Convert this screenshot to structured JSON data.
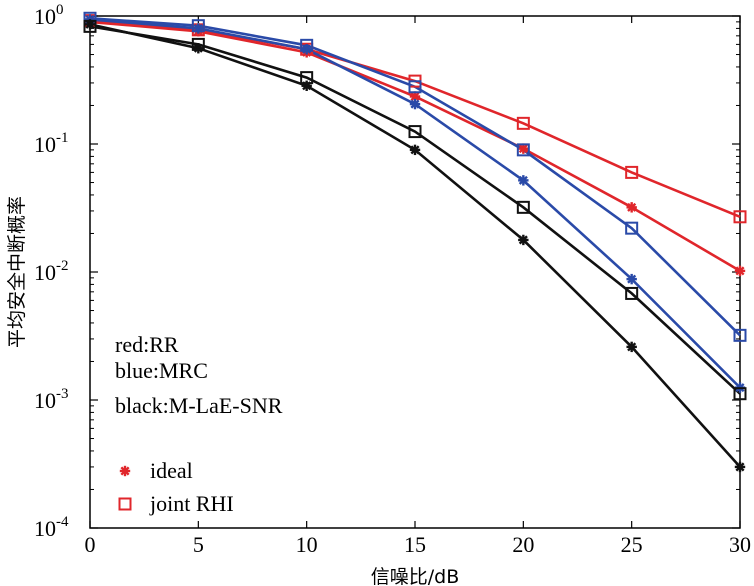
{
  "chart_data": {
    "type": "line",
    "title": "",
    "xlabel": "信噪比/dB",
    "ylabel": "平均安全中断概率",
    "xlim": [
      0,
      30
    ],
    "ylim": [
      0.0001,
      1
    ],
    "yscale": "log",
    "grid": false,
    "x": [
      0,
      5,
      10,
      15,
      20,
      25,
      30
    ],
    "x_ticks": [
      "0",
      "5",
      "10",
      "15",
      "20",
      "25",
      "30"
    ],
    "y_ticks": [
      {
        "base": "10",
        "exp": "0"
      },
      {
        "base": "10",
        "exp": "-1"
      },
      {
        "base": "10",
        "exp": "-2"
      },
      {
        "base": "10",
        "exp": "-3"
      },
      {
        "base": "10",
        "exp": "-4"
      }
    ],
    "colors": {
      "red": "#e0262b",
      "blue": "#2a4aa8",
      "black": "#111111"
    },
    "series": [
      {
        "color": "red",
        "marker": "star",
        "values": [
          0.9,
          0.76,
          0.52,
          0.235,
          0.092,
          0.032,
          0.0102
        ]
      },
      {
        "color": "red",
        "marker": "square",
        "values": [
          0.92,
          0.78,
          0.55,
          0.31,
          0.145,
          0.06,
          0.027
        ]
      },
      {
        "color": "blue",
        "marker": "star",
        "values": [
          0.94,
          0.8,
          0.55,
          0.205,
          0.052,
          0.0088,
          0.00125
        ]
      },
      {
        "color": "blue",
        "marker": "square",
        "values": [
          0.96,
          0.84,
          0.59,
          0.28,
          0.09,
          0.022,
          0.0032
        ]
      },
      {
        "color": "black",
        "marker": "star",
        "values": [
          0.86,
          0.56,
          0.285,
          0.09,
          0.0178,
          0.0026,
          0.0003
        ]
      },
      {
        "color": "black",
        "marker": "square",
        "values": [
          0.83,
          0.6,
          0.33,
          0.125,
          0.032,
          0.0068,
          0.00112
        ]
      }
    ],
    "annotations": [
      "red:RR",
      "blue:MRC",
      "black:M-LaE-SNR"
    ],
    "legend": {
      "position": "bottom-left",
      "entries": [
        {
          "label": "ideal",
          "marker": "star",
          "color": "red"
        },
        {
          "label": "joint RHI",
          "marker": "square",
          "color": "red"
        }
      ]
    }
  }
}
